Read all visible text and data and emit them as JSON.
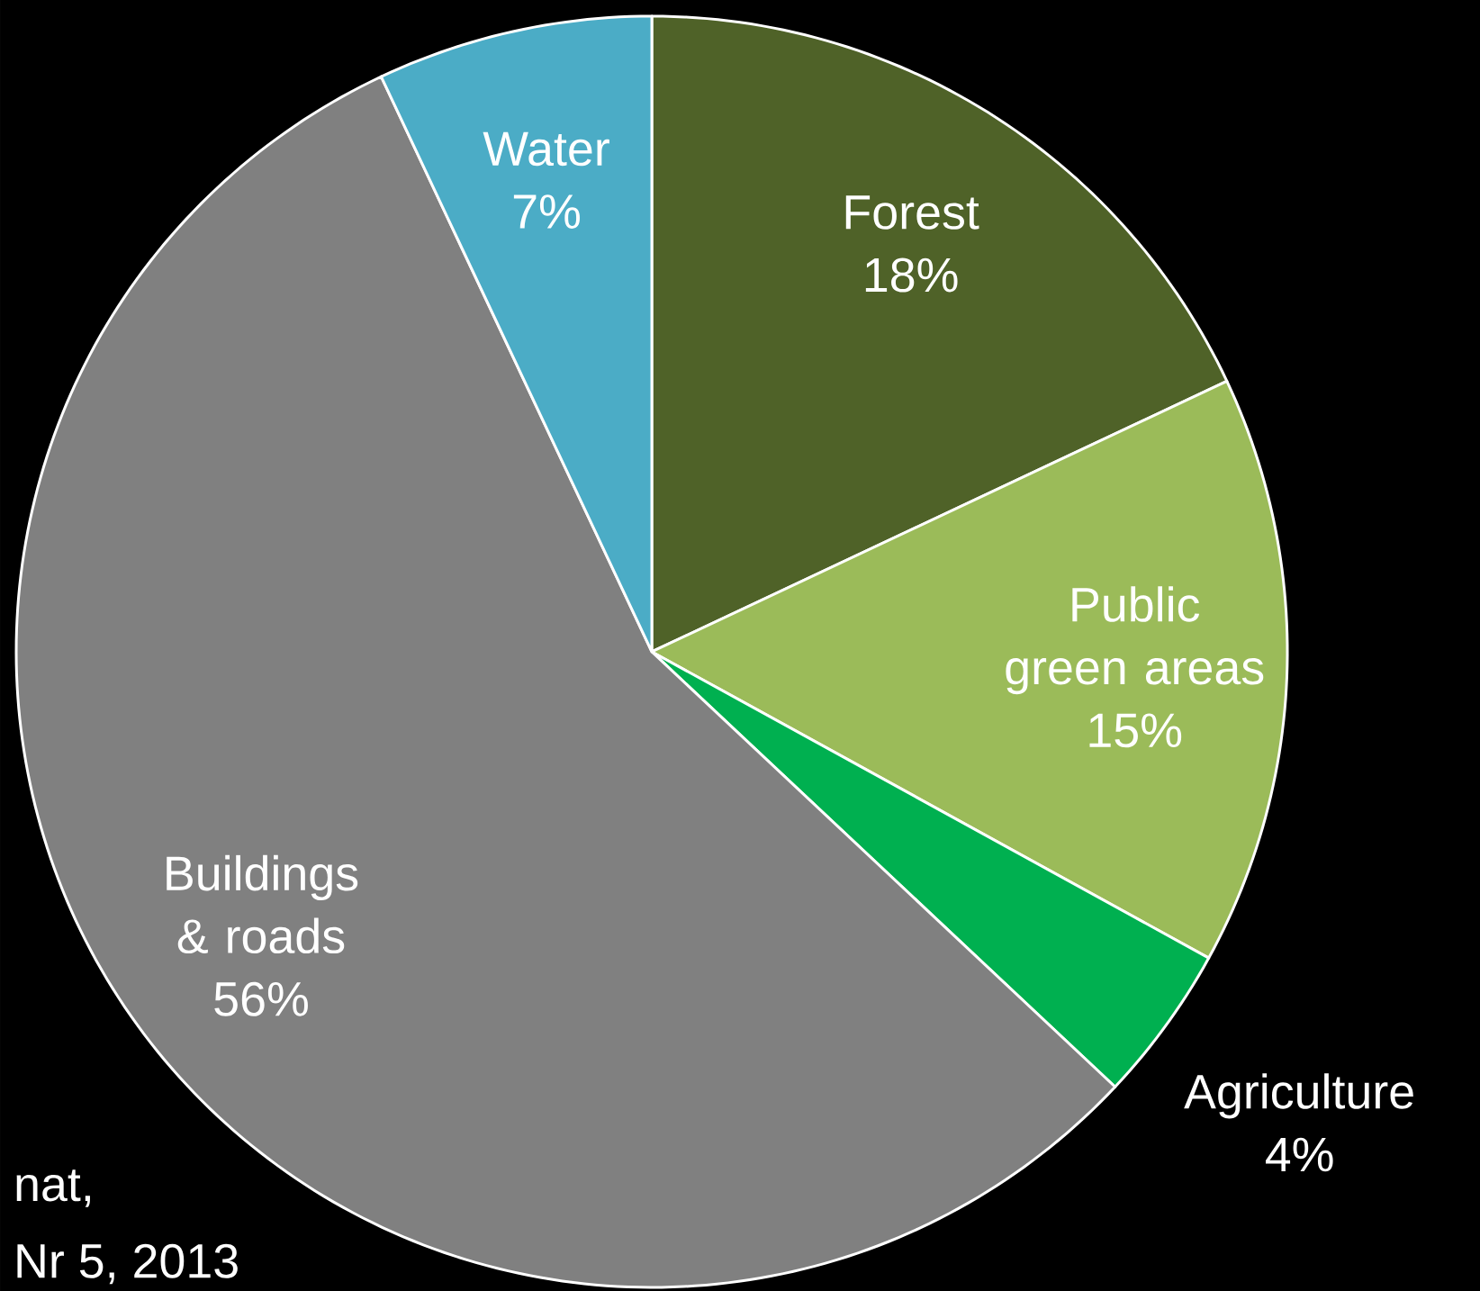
{
  "chart_data": {
    "type": "pie",
    "categories": [
      "Forest",
      "Public green areas",
      "Agriculture",
      "Buildings & roads",
      "Water"
    ],
    "values": [
      18,
      15,
      4,
      56,
      7
    ],
    "value_labels": [
      "18%",
      "15%",
      "4%",
      "56%",
      "7%"
    ],
    "colors": [
      "#4f6228",
      "#9bbb59",
      "#00b050",
      "#808080",
      "#4bacc6"
    ],
    "annotations": [
      "nat,",
      "Nr 5, 2013"
    ]
  }
}
